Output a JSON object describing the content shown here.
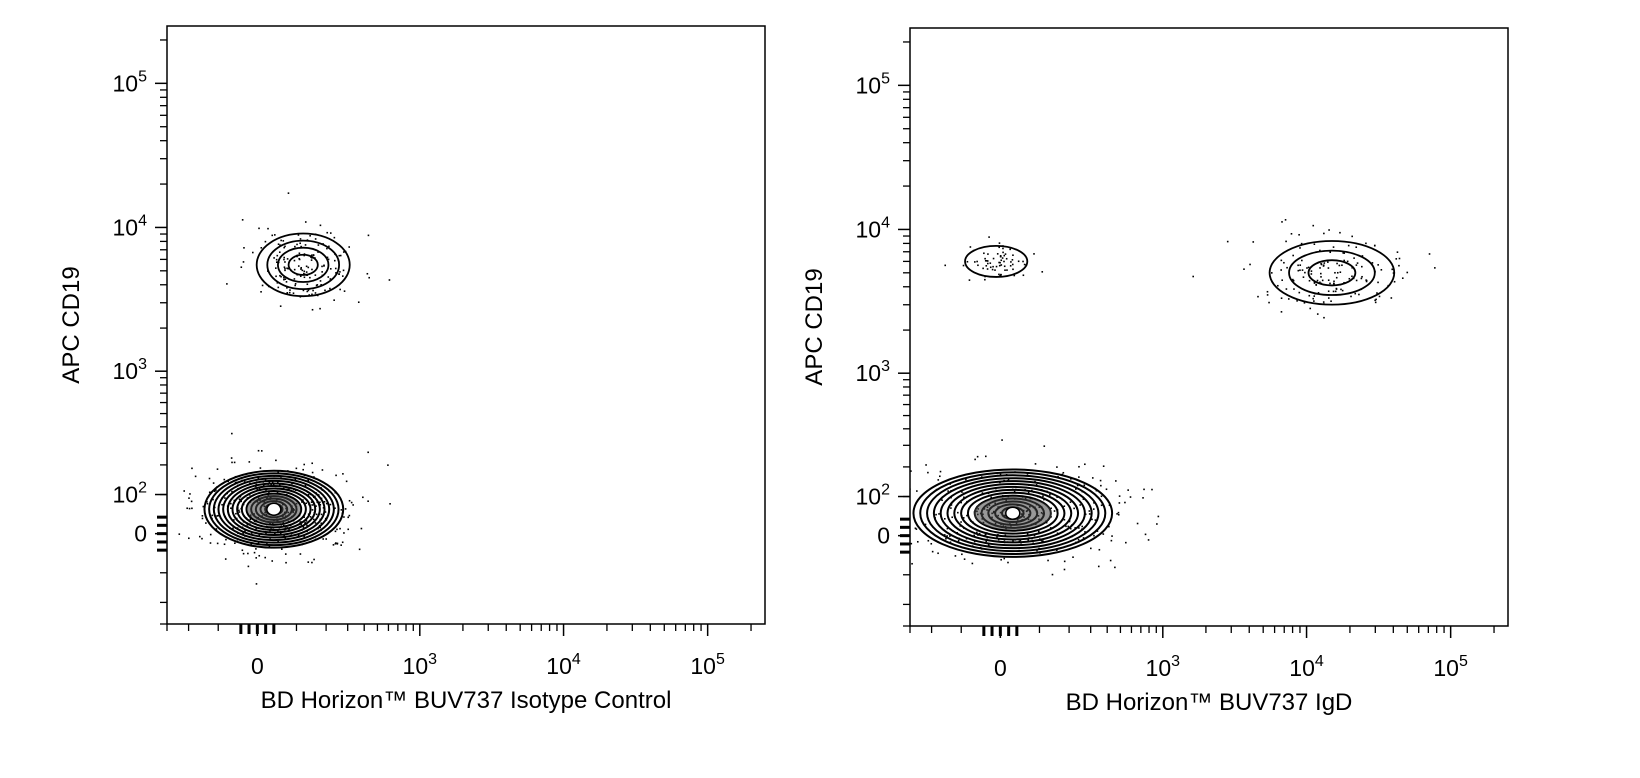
{
  "chart_data": [
    {
      "type": "scatter",
      "subtype": "flow-cytometry-contour",
      "xlabel": "BD Horizon™ BUV737 Isotype Control",
      "ylabel": "APC CD19",
      "x_scale": "biexponential",
      "y_scale": "biexponential",
      "xlim": [
        -300,
        250000
      ],
      "ylim": [
        -300,
        250000
      ],
      "x_ticks": [
        {
          "value": 0,
          "label": "0"
        },
        {
          "value": 1000,
          "label": "10",
          "sup": "3"
        },
        {
          "value": 10000,
          "label": "10",
          "sup": "4"
        },
        {
          "value": 100000,
          "label": "10",
          "sup": "5"
        }
      ],
      "y_ticks": [
        {
          "value": 0,
          "label": "0"
        },
        {
          "value": 100,
          "label": "10",
          "sup": "2"
        },
        {
          "value": 1000,
          "label": "10",
          "sup": "3"
        },
        {
          "value": 10000,
          "label": "10",
          "sup": "4"
        },
        {
          "value": 100000,
          "label": "10",
          "sup": "5"
        }
      ],
      "populations": [
        {
          "center": [
            40,
            60
          ],
          "spread": [
            190,
            95
          ],
          "contour_levels": 14,
          "events": 420
        },
        {
          "center": [
            120,
            5500
          ],
          "spread": [
            150,
            2800
          ],
          "contour_levels": 4,
          "events": 170
        }
      ],
      "grid": false,
      "legend": "none"
    },
    {
      "type": "scatter",
      "subtype": "flow-cytometry-contour",
      "xlabel": "BD Horizon™ BUV737 IgD",
      "ylabel": "APC CD19",
      "x_scale": "biexponential",
      "y_scale": "biexponential",
      "xlim": [
        -300,
        250000
      ],
      "ylim": [
        -300,
        250000
      ],
      "x_ticks": [
        {
          "value": 0,
          "label": "0"
        },
        {
          "value": 1000,
          "label": "10",
          "sup": "3"
        },
        {
          "value": 10000,
          "label": "10",
          "sup": "4"
        },
        {
          "value": 100000,
          "label": "10",
          "sup": "5"
        }
      ],
      "y_ticks": [
        {
          "value": 0,
          "label": "0"
        },
        {
          "value": 100,
          "label": "10",
          "sup": "2"
        },
        {
          "value": 1000,
          "label": "10",
          "sup": "3"
        },
        {
          "value": 10000,
          "label": "10",
          "sup": "4"
        },
        {
          "value": 100000,
          "label": "10",
          "sup": "5"
        }
      ],
      "populations": [
        {
          "center": [
            30,
            55
          ],
          "spread": [
            320,
            110
          ],
          "contour_levels": 14,
          "events": 360
        },
        {
          "center": [
            -10,
            6000
          ],
          "spread": [
            60,
            1200
          ],
          "contour_levels": 1,
          "events": 70
        },
        {
          "center": [
            15000,
            5000
          ],
          "spread": [
            20000,
            2600
          ],
          "contour_levels": 3,
          "events": 160
        }
      ],
      "grid": false,
      "legend": "none"
    }
  ]
}
